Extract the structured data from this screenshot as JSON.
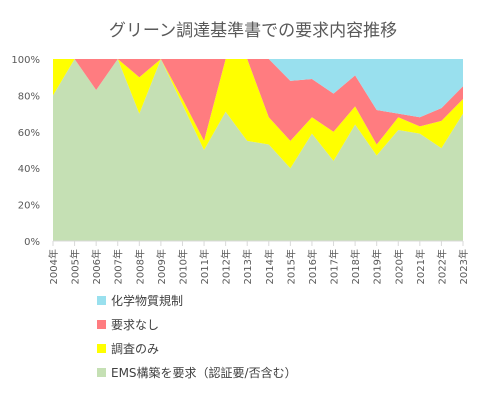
{
  "chart_data": {
    "type": "area",
    "stacked": true,
    "normalized": true,
    "title": "グリーン調達基準書での要求内容推移",
    "x": [
      "2004年",
      "2005年",
      "2006年",
      "2007年",
      "2008年",
      "2009年",
      "2010年",
      "2011年",
      "2012年",
      "2013年",
      "2014年",
      "2015年",
      "2016年",
      "2017年",
      "2018年",
      "2019年",
      "2020年",
      "2021年",
      "2022年",
      "2023年"
    ],
    "ylim": [
      0,
      100
    ],
    "y_ticks": [
      "0%",
      "20%",
      "40%",
      "60%",
      "80%",
      "100%"
    ],
    "grid": false,
    "legend_position": "bottom",
    "series": [
      {
        "name": "EMS構築を要求（認証要/否含む）",
        "color": "#c5e0b4",
        "values": [
          80,
          100,
          83,
          100,
          70,
          100,
          75,
          50,
          71,
          55,
          53,
          40,
          59,
          44,
          64,
          47,
          61,
          59,
          51,
          70
        ]
      },
      {
        "name": "調査のみ",
        "color": "#ffff00",
        "values": [
          20,
          0,
          0,
          0,
          20,
          0,
          3,
          5,
          29,
          45,
          15,
          15,
          9,
          16,
          10,
          6,
          7,
          4,
          15,
          8
        ]
      },
      {
        "name": "要求なし",
        "color": "#ff7c80",
        "values": [
          0,
          0,
          17,
          0,
          10,
          0,
          22,
          45,
          0,
          0,
          32,
          33,
          21,
          21,
          17,
          19,
          2,
          5,
          7,
          7
        ]
      },
      {
        "name": "化学物質規制",
        "color": "#99e0ee",
        "values": [
          0,
          0,
          0,
          0,
          0,
          0,
          0,
          0,
          0,
          0,
          0,
          12,
          11,
          19,
          9,
          28,
          30,
          32,
          27,
          15
        ]
      }
    ]
  }
}
